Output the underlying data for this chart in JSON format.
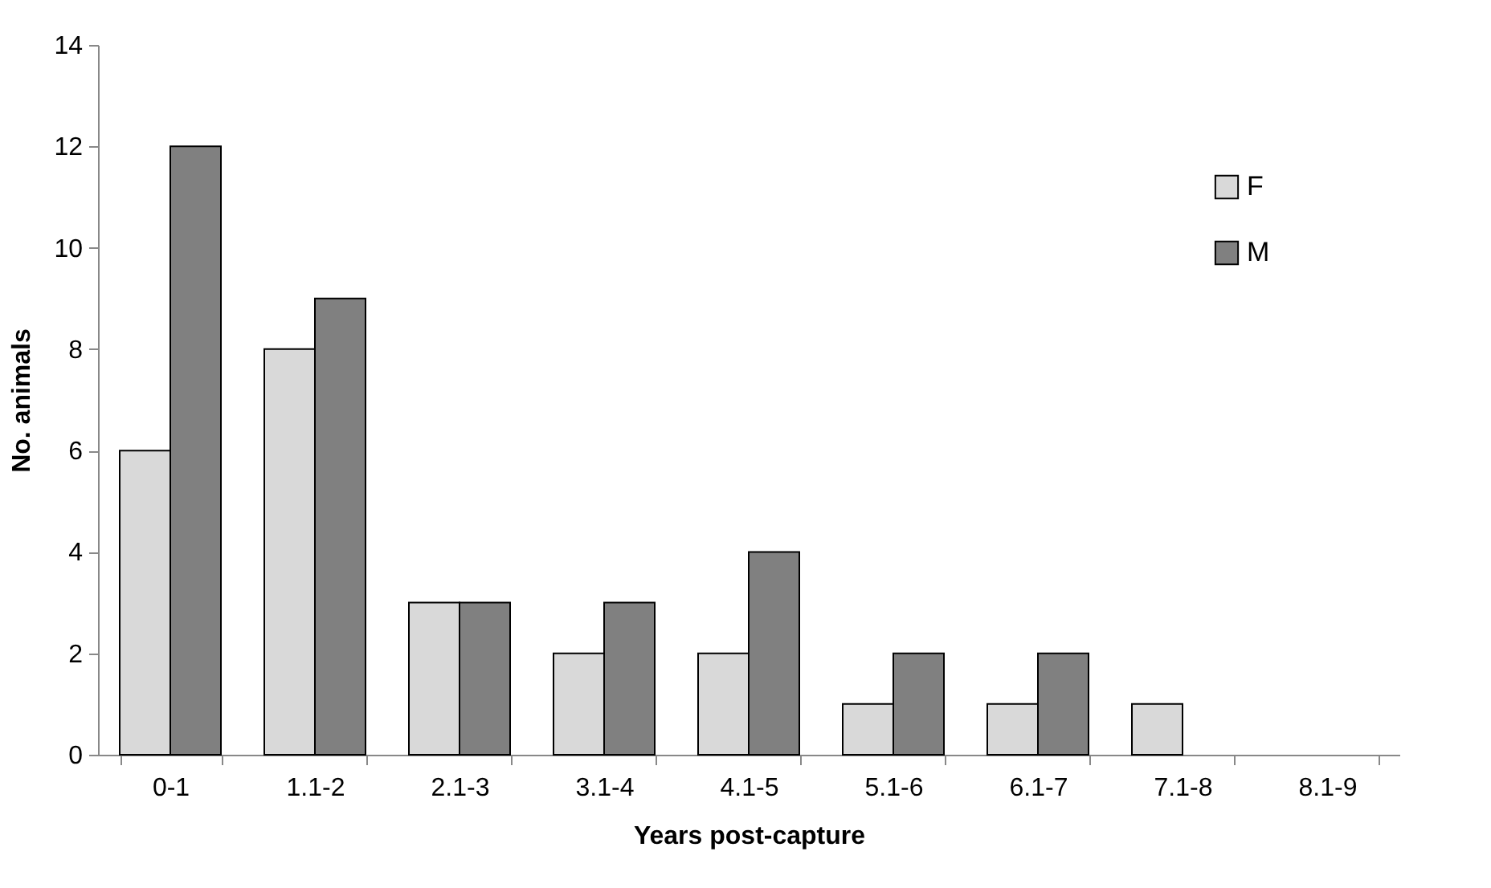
{
  "chart_data": {
    "type": "bar",
    "xlabel": "Years post-capture",
    "ylabel": "No. animals",
    "categories": [
      "0-1",
      "1.1-2",
      "2.1-3",
      "3.1-4",
      "4.1-5",
      "5.1-6",
      "6.1-7",
      "7.1-8",
      "8.1-9"
    ],
    "series": [
      {
        "name": "F",
        "color": "#d9d9d9",
        "values": [
          6,
          8,
          3,
          2,
          2,
          1,
          1,
          1,
          0
        ]
      },
      {
        "name": "M",
        "color": "#808080",
        "values": [
          12,
          9,
          3,
          3,
          4,
          2,
          2,
          0,
          0
        ]
      }
    ],
    "ylim": [
      0,
      14
    ],
    "yticks": [
      0,
      2,
      4,
      6,
      8,
      10,
      12,
      14
    ],
    "grid": false,
    "legend": "top right"
  }
}
